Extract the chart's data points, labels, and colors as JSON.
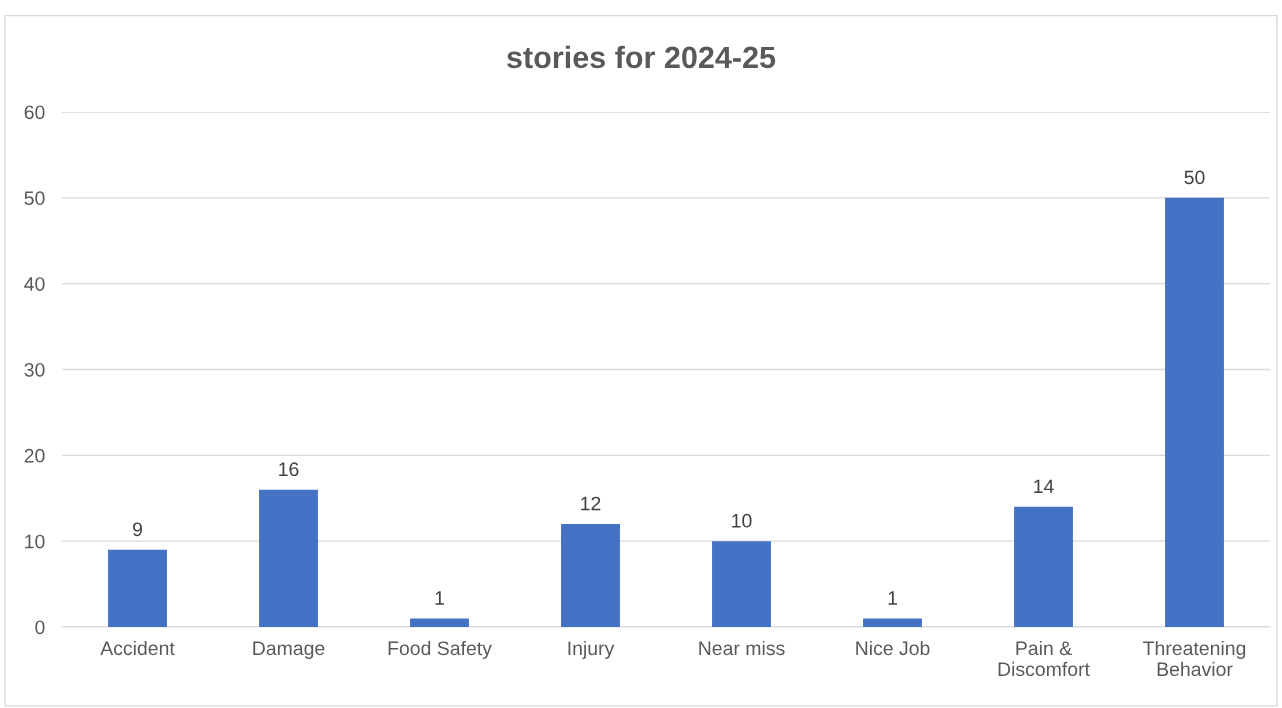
{
  "chart_data": {
    "type": "bar",
    "title": "stories for 2024-25",
    "categories": [
      "Accident",
      "Damage",
      "Food Safety",
      "Injury",
      "Near miss",
      "Nice Job",
      "Pain &\nDiscomfort",
      "Threatening\nBehavior"
    ],
    "values": [
      9,
      16,
      1,
      12,
      10,
      1,
      14,
      50
    ],
    "color": "#4472c4",
    "ylim": [
      0,
      60
    ],
    "yticks": [
      0,
      10,
      20,
      30,
      40,
      50,
      60
    ],
    "grid": "y",
    "data_labels": true,
    "legend": false
  }
}
